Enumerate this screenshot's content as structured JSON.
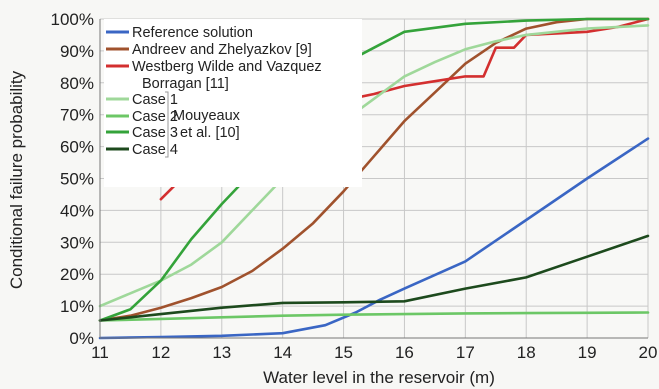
{
  "chart_data": {
    "type": "line",
    "title": "",
    "xlabel": "Water level in the reservoir (m)",
    "ylabel": "Conditional failure probability",
    "xlim": [
      11,
      20
    ],
    "ylim": [
      0,
      100
    ],
    "x_ticks": [
      11,
      12,
      13,
      14,
      15,
      16,
      17,
      18,
      19,
      20
    ],
    "y_ticks": [
      0,
      10,
      20,
      30,
      40,
      50,
      60,
      70,
      80,
      90,
      100
    ],
    "y_tick_labels": [
      "0%",
      "10%",
      "20%",
      "30%",
      "40%",
      "50%",
      "60%",
      "70%",
      "80%",
      "90%",
      "100%"
    ],
    "grid": true,
    "legend_position": "top-left",
    "legend_group_label": "Mouyeaux et al. [10]",
    "series": [
      {
        "name": "Reference solution",
        "color": "#3a66c4",
        "points": [
          [
            11,
            0
          ],
          [
            12,
            0.3
          ],
          [
            13,
            0.7
          ],
          [
            14,
            1.5
          ],
          [
            14.7,
            4
          ],
          [
            15.2,
            8
          ],
          [
            15.6,
            12
          ],
          [
            16,
            15.5
          ],
          [
            17,
            24
          ],
          [
            18,
            37
          ],
          [
            19,
            50
          ],
          [
            20,
            62.5
          ]
        ]
      },
      {
        "name": "Andreev and Zhelyazkov [9]",
        "color": "#a0522d",
        "points": [
          [
            11,
            5.5
          ],
          [
            11.5,
            7
          ],
          [
            12,
            9.5
          ],
          [
            12.5,
            12.5
          ],
          [
            13,
            16
          ],
          [
            13.5,
            21
          ],
          [
            14,
            28
          ],
          [
            14.5,
            36
          ],
          [
            15,
            46
          ],
          [
            15.5,
            57
          ],
          [
            16,
            68
          ],
          [
            16.5,
            77
          ],
          [
            17,
            86
          ],
          [
            17.5,
            92.5
          ],
          [
            18,
            97
          ],
          [
            18.5,
            99
          ],
          [
            19,
            100
          ],
          [
            20,
            100
          ]
        ]
      },
      {
        "name": "Westberg Wilde and Vazquez Borragan [11]",
        "color": "#d32f2f",
        "points": [
          [
            12,
            43.5
          ],
          [
            12.5,
            53
          ],
          [
            13,
            57
          ],
          [
            13.5,
            60
          ],
          [
            14,
            68
          ],
          [
            14.5,
            72
          ],
          [
            15,
            74.5
          ],
          [
            15.5,
            76.5
          ],
          [
            16,
            79
          ],
          [
            16.5,
            80.5
          ],
          [
            17,
            82
          ],
          [
            17.3,
            82
          ],
          [
            17.5,
            91
          ],
          [
            17.8,
            91
          ],
          [
            18,
            95
          ],
          [
            18.5,
            95.5
          ],
          [
            19,
            96
          ],
          [
            19.5,
            97.5
          ],
          [
            20,
            100
          ]
        ]
      },
      {
        "name": "Case 1",
        "color": "#9fd89a",
        "points": [
          [
            11,
            10
          ],
          [
            11.5,
            14
          ],
          [
            12,
            18
          ],
          [
            12.5,
            23
          ],
          [
            13,
            30
          ],
          [
            13.5,
            40
          ],
          [
            14,
            50
          ],
          [
            14.5,
            60
          ],
          [
            15,
            68
          ],
          [
            15.5,
            75
          ],
          [
            16,
            82
          ],
          [
            16.5,
            86.5
          ],
          [
            17,
            90.5
          ],
          [
            17.5,
            93
          ],
          [
            18,
            95
          ],
          [
            19,
            97
          ],
          [
            20,
            98
          ]
        ]
      },
      {
        "name": "Case 2",
        "color": "#6cc766",
        "points": [
          [
            11,
            5.5
          ],
          [
            12,
            6
          ],
          [
            13,
            6.5
          ],
          [
            14,
            7
          ],
          [
            15,
            7.3
          ],
          [
            16,
            7.5
          ],
          [
            17,
            7.7
          ],
          [
            18,
            7.8
          ],
          [
            19,
            7.9
          ],
          [
            20,
            8
          ]
        ]
      },
      {
        "name": "Case 3",
        "color": "#34a33a",
        "points": [
          [
            11,
            5.5
          ],
          [
            11.5,
            9
          ],
          [
            12,
            18
          ],
          [
            12.5,
            31
          ],
          [
            13,
            42
          ],
          [
            13.3,
            48
          ],
          [
            13.6,
            57
          ],
          [
            14,
            67
          ],
          [
            14.5,
            77
          ],
          [
            15,
            86
          ],
          [
            15.5,
            91
          ],
          [
            16,
            96
          ],
          [
            17,
            98.5
          ],
          [
            18,
            99.5
          ],
          [
            19,
            100
          ],
          [
            20,
            100
          ]
        ]
      },
      {
        "name": "Case 4",
        "color": "#1d4a1d",
        "points": [
          [
            11,
            5.5
          ],
          [
            12,
            7.5
          ],
          [
            13,
            9.5
          ],
          [
            14,
            11
          ],
          [
            15,
            11.2
          ],
          [
            16,
            11.5
          ],
          [
            17,
            15.5
          ],
          [
            18,
            19
          ],
          [
            19,
            25.5
          ],
          [
            20,
            32
          ]
        ]
      }
    ]
  }
}
